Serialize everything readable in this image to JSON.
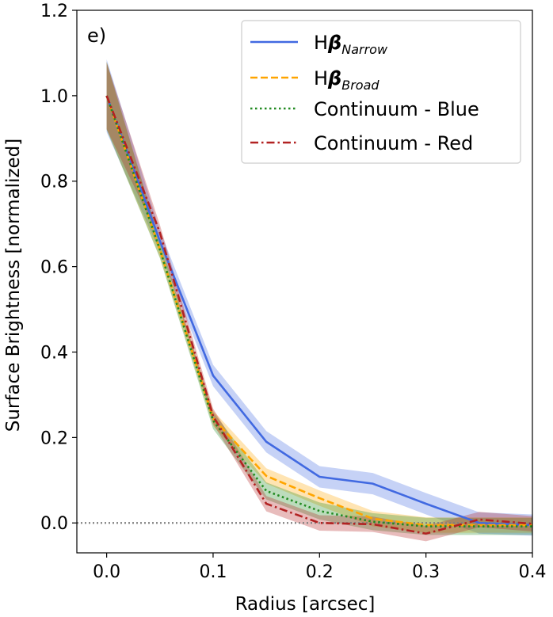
{
  "chart_data": {
    "type": "line",
    "panel_label": "e)",
    "xlabel": "Radius [arcsec]",
    "ylabel": "Surface Brightness [normalized]",
    "xlim": [
      -0.028,
      0.4
    ],
    "ylim": [
      -0.07,
      1.2
    ],
    "xticks": [
      0.0,
      0.1,
      0.2,
      0.3,
      0.4
    ],
    "xtick_labels": [
      "0.0",
      "0.1",
      "0.2",
      "0.3",
      "0.4"
    ],
    "yticks": [
      0.0,
      0.2,
      0.4,
      0.6,
      0.8,
      1.0,
      1.2
    ],
    "ytick_labels": [
      "0.0",
      "0.2",
      "0.4",
      "0.6",
      "0.8",
      "1.0",
      "1.2"
    ],
    "reference_line": {
      "y": 0.0,
      "style": "dotted",
      "color": "#808080"
    },
    "x": [
      0.0,
      0.05,
      0.1,
      0.15,
      0.2,
      0.25,
      0.3,
      0.35,
      0.4
    ],
    "series": [
      {
        "name": "Hβ Narrow",
        "legend_main": "H",
        "legend_greek": "β",
        "legend_sub": "Narrow",
        "color": "#4169e1",
        "style": "solid",
        "values": [
          1.0,
          0.66,
          0.345,
          0.19,
          0.108,
          0.092,
          0.045,
          0.0,
          -0.005
        ],
        "band": 0.025
      },
      {
        "name": "Hβ Broad",
        "legend_main": "H",
        "legend_greek": "β",
        "legend_sub": "Broad",
        "color": "#ffa500",
        "style": "dashed",
        "values": [
          1.0,
          0.64,
          0.245,
          0.11,
          0.058,
          0.01,
          -0.005,
          -0.005,
          -0.005
        ],
        "band": 0.018
      },
      {
        "name": "Continuum - Blue",
        "legend_main": "Continuum - Blue",
        "color": "#228b22",
        "style": "dotted",
        "values": [
          1.0,
          0.64,
          0.24,
          0.075,
          0.028,
          0.003,
          -0.008,
          -0.008,
          -0.008
        ],
        "band": 0.02
      },
      {
        "name": "Continuum - Red",
        "legend_main": "Continuum - Red",
        "color": "#b22222",
        "style": "dashdot",
        "values": [
          1.0,
          0.68,
          0.25,
          0.045,
          0.0,
          -0.003,
          -0.025,
          0.008,
          -0.002
        ],
        "band": 0.018
      }
    ],
    "legend_position": "top-right"
  }
}
